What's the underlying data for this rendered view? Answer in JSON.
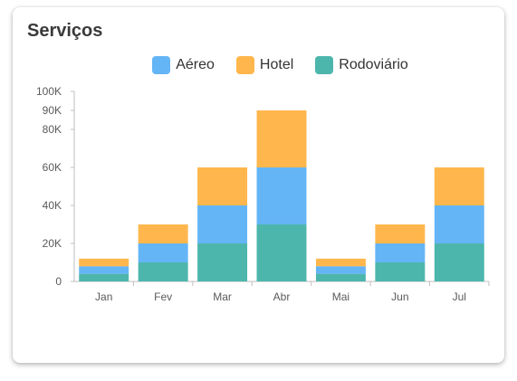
{
  "card": {
    "title": "Serviços"
  },
  "chart_data": {
    "type": "bar",
    "stacked": true,
    "categories": [
      "Jan",
      "Fev",
      "Mar",
      "Abr",
      "Mai",
      "Jun",
      "Jul"
    ],
    "series": [
      {
        "name": "Rodoviário",
        "color": "#4DB6AC",
        "values": [
          4000,
          10000,
          20000,
          30000,
          4000,
          10000,
          20000
        ]
      },
      {
        "name": "Aéreo",
        "color": "#64B5F6",
        "values": [
          4000,
          10000,
          20000,
          30000,
          4000,
          10000,
          20000
        ]
      },
      {
        "name": "Hotel",
        "color": "#FFB74D",
        "values": [
          4000,
          10000,
          20000,
          30000,
          4000,
          10000,
          20000
        ]
      }
    ],
    "legend_order": [
      "Aéreo",
      "Hotel",
      "Rodoviário"
    ],
    "ylim": [
      0,
      100000
    ],
    "yticks": [
      0,
      20000,
      40000,
      60000,
      80000,
      90000,
      100000
    ],
    "ytick_labels": [
      "0",
      "20K",
      "40K",
      "60K",
      "80K",
      "90K",
      "100K"
    ],
    "legend_position": "top",
    "grid": false
  }
}
